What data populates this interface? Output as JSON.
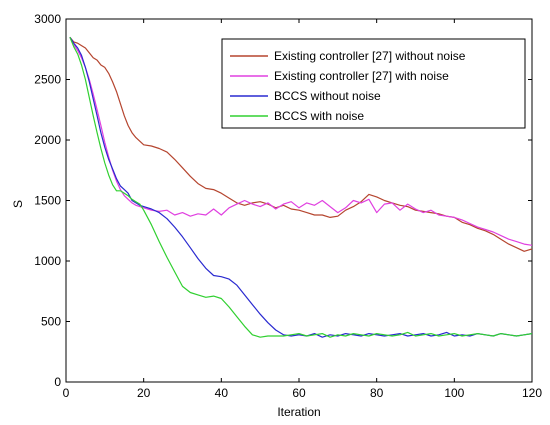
{
  "chart_data": {
    "type": "line",
    "title": "",
    "xlabel": "Iteration",
    "ylabel": "S",
    "xlim": [
      0,
      120
    ],
    "ylim": [
      0,
      3000
    ],
    "x_ticks": [
      "0",
      "20",
      "40",
      "60",
      "80",
      "100",
      "120"
    ],
    "y_ticks": [
      "0",
      "500",
      "1000",
      "1500",
      "2000",
      "2500",
      "3000"
    ],
    "grid": false,
    "legend_position": "top-right",
    "series": [
      {
        "name": "Existing controller [27] without noise",
        "color": "#b5452f",
        "x": [
          1,
          2,
          3,
          4,
          5,
          6,
          7,
          8,
          9,
          10,
          11,
          12,
          13,
          14,
          15,
          16,
          17,
          18,
          19,
          20,
          22,
          24,
          26,
          28,
          30,
          32,
          34,
          36,
          38,
          40,
          42,
          44,
          46,
          48,
          50,
          52,
          54,
          56,
          58,
          60,
          62,
          64,
          66,
          68,
          70,
          72,
          74,
          76,
          78,
          80,
          82,
          84,
          86,
          88,
          90,
          92,
          94,
          96,
          98,
          100,
          102,
          104,
          106,
          108,
          110,
          112,
          114,
          116,
          118,
          120
        ],
        "y": [
          2850,
          2810,
          2800,
          2780,
          2760,
          2720,
          2680,
          2660,
          2620,
          2600,
          2550,
          2480,
          2400,
          2300,
          2200,
          2120,
          2060,
          2020,
          1990,
          1960,
          1950,
          1930,
          1900,
          1840,
          1770,
          1700,
          1640,
          1600,
          1590,
          1560,
          1520,
          1480,
          1460,
          1480,
          1490,
          1470,
          1440,
          1460,
          1430,
          1420,
          1400,
          1380,
          1380,
          1360,
          1370,
          1420,
          1450,
          1490,
          1550,
          1530,
          1500,
          1480,
          1460,
          1450,
          1420,
          1410,
          1400,
          1390,
          1370,
          1360,
          1320,
          1300,
          1270,
          1250,
          1220,
          1180,
          1140,
          1110,
          1080,
          1100
        ]
      },
      {
        "name": "Existing controller [27] with noise",
        "color": "#e040e0",
        "x": [
          1,
          2,
          3,
          4,
          5,
          6,
          7,
          8,
          9,
          10,
          11,
          12,
          13,
          14,
          15,
          16,
          17,
          18,
          19,
          20,
          22,
          24,
          26,
          28,
          30,
          32,
          34,
          36,
          38,
          40,
          42,
          44,
          46,
          48,
          50,
          52,
          54,
          56,
          58,
          60,
          62,
          64,
          66,
          68,
          70,
          72,
          74,
          76,
          78,
          80,
          82,
          84,
          86,
          88,
          90,
          92,
          94,
          96,
          98,
          100,
          102,
          104,
          106,
          108,
          110,
          112,
          114,
          116,
          118,
          120
        ],
        "y": [
          2850,
          2790,
          2740,
          2680,
          2600,
          2500,
          2380,
          2250,
          2120,
          1980,
          1860,
          1750,
          1660,
          1590,
          1540,
          1510,
          1480,
          1460,
          1450,
          1440,
          1420,
          1410,
          1420,
          1380,
          1400,
          1370,
          1390,
          1380,
          1430,
          1380,
          1440,
          1470,
          1500,
          1470,
          1450,
          1480,
          1430,
          1470,
          1490,
          1440,
          1480,
          1460,
          1500,
          1450,
          1400,
          1440,
          1500,
          1480,
          1510,
          1400,
          1470,
          1480,
          1420,
          1470,
          1430,
          1400,
          1420,
          1380,
          1370,
          1360,
          1340,
          1310,
          1280,
          1260,
          1240,
          1210,
          1180,
          1160,
          1140,
          1130
        ]
      },
      {
        "name": "BCCS without noise",
        "color": "#2a2ad0",
        "x": [
          1,
          2,
          3,
          4,
          5,
          6,
          7,
          8,
          9,
          10,
          11,
          12,
          13,
          14,
          15,
          16,
          17,
          18,
          19,
          20,
          22,
          24,
          26,
          28,
          30,
          32,
          34,
          36,
          38,
          40,
          42,
          44,
          46,
          48,
          50,
          52,
          54,
          56,
          58,
          60,
          62,
          64,
          66,
          68,
          70,
          72,
          74,
          76,
          78,
          80,
          82,
          84,
          86,
          88,
          90,
          92,
          94,
          96,
          98,
          100,
          102,
          104,
          106,
          108,
          110,
          112,
          114,
          116,
          118,
          120
        ],
        "y": [
          2850,
          2800,
          2760,
          2700,
          2600,
          2480,
          2340,
          2200,
          2060,
          1940,
          1840,
          1760,
          1680,
          1620,
          1590,
          1560,
          1500,
          1480,
          1460,
          1450,
          1430,
          1400,
          1350,
          1280,
          1200,
          1110,
          1020,
          940,
          880,
          870,
          850,
          800,
          720,
          640,
          560,
          490,
          430,
          390,
          380,
          390,
          380,
          400,
          370,
          390,
          380,
          400,
          390,
          380,
          400,
          390,
          380,
          390,
          400,
          380,
          390,
          400,
          380,
          390,
          410,
          380,
          390,
          380,
          400,
          390,
          380,
          400,
          390,
          380,
          390,
          400
        ]
      },
      {
        "name": "BCCS with noise",
        "color": "#30d030",
        "x": [
          1,
          2,
          3,
          4,
          5,
          6,
          7,
          8,
          9,
          10,
          11,
          12,
          13,
          14,
          15,
          16,
          17,
          18,
          19,
          20,
          22,
          24,
          26,
          28,
          30,
          32,
          34,
          36,
          38,
          40,
          42,
          44,
          46,
          48,
          50,
          52,
          54,
          56,
          58,
          60,
          62,
          64,
          66,
          68,
          70,
          72,
          74,
          76,
          78,
          80,
          82,
          84,
          86,
          88,
          90,
          92,
          94,
          96,
          98,
          100,
          102,
          104,
          106,
          108,
          110,
          112,
          114,
          116,
          118,
          120
        ],
        "y": [
          2850,
          2770,
          2710,
          2620,
          2500,
          2350,
          2200,
          2060,
          1930,
          1810,
          1710,
          1630,
          1580,
          1580,
          1560,
          1540,
          1510,
          1490,
          1470,
          1420,
          1300,
          1160,
          1030,
          910,
          790,
          740,
          720,
          700,
          710,
          690,
          620,
          540,
          460,
          390,
          370,
          380,
          380,
          380,
          390,
          400,
          380,
          390,
          400,
          370,
          390,
          380,
          400,
          390,
          380,
          400,
          390,
          380,
          390,
          410,
          380,
          390,
          400,
          380,
          390,
          400,
          380,
          390,
          400,
          390,
          380,
          400,
          390,
          380,
          390,
          400
        ]
      }
    ]
  }
}
